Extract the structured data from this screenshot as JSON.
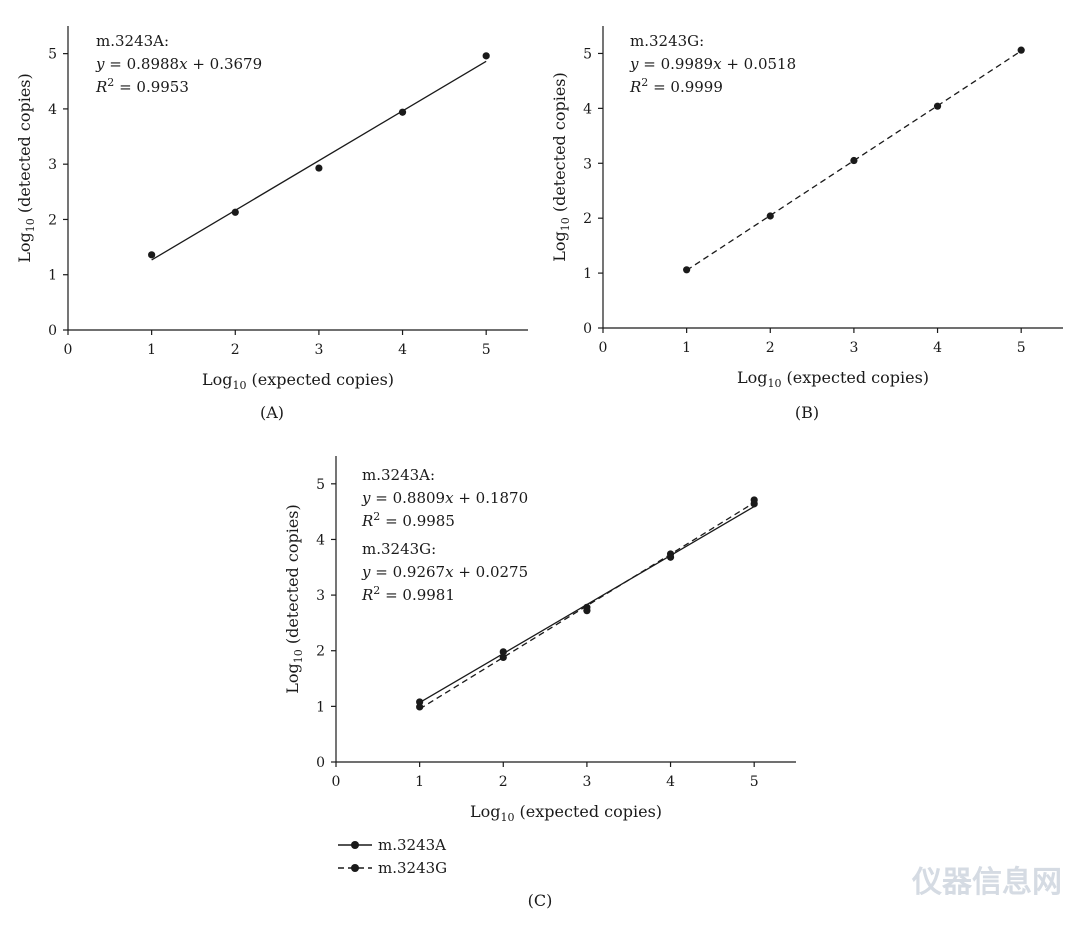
{
  "colors": {
    "ink": "#1a1a1a",
    "watermark": "#d5dbe3"
  },
  "legend": [
    {
      "name": "m.3243A",
      "style": "solid"
    },
    {
      "name": "m.3243G",
      "style": "dashed"
    }
  ],
  "watermark": {
    "text": "仪器信息网"
  },
  "chart_data": [
    {
      "panel": "(A)",
      "type": "scatter",
      "xlabel": "Log10 (expected copies)",
      "ylabel": "Log10 (detected copies)",
      "xlim": [
        0,
        5.5
      ],
      "ylim": [
        0,
        5.5
      ],
      "xticks": [
        0,
        1,
        2,
        3,
        4,
        5
      ],
      "yticks": [
        0,
        1,
        2,
        3,
        4,
        5
      ],
      "series": [
        {
          "name": "m.3243A",
          "line": "solid",
          "fit": {
            "slope": 0.8988,
            "intercept": 0.3679
          },
          "points": [
            [
              1,
              1.36
            ],
            [
              2,
              2.13
            ],
            [
              3,
              2.93
            ],
            [
              4,
              3.94
            ],
            [
              5,
              4.96
            ]
          ],
          "annotation": {
            "name": "m.3243A:",
            "equation": "y = 0.8988x + 0.3679",
            "r2": "R2 = 0.9953"
          }
        }
      ]
    },
    {
      "panel": "(B)",
      "type": "scatter",
      "xlabel": "Log10 (expected copies)",
      "ylabel": "Log10 (detected copies)",
      "xlim": [
        0,
        5.5
      ],
      "ylim": [
        0,
        5.5
      ],
      "xticks": [
        0,
        1,
        2,
        3,
        4,
        5
      ],
      "yticks": [
        0,
        1,
        2,
        3,
        4,
        5
      ],
      "series": [
        {
          "name": "m.3243G",
          "line": "dashed",
          "fit": {
            "slope": 0.9989,
            "intercept": 0.0518
          },
          "points": [
            [
              1,
              1.06
            ],
            [
              2,
              2.04
            ],
            [
              3,
              3.05
            ],
            [
              4,
              4.04
            ],
            [
              5,
              5.06
            ]
          ],
          "annotation": {
            "name": "m.3243G:",
            "equation": "y = 0.9989x + 0.0518",
            "r2": "R2 = 0.9999"
          }
        }
      ]
    },
    {
      "panel": "(C)",
      "type": "scatter",
      "xlabel": "Log10 (expected copies)",
      "ylabel": "Log10 (detected copies)",
      "xlim": [
        0,
        5.5
      ],
      "ylim": [
        0,
        5.5
      ],
      "xticks": [
        0,
        1,
        2,
        3,
        4,
        5
      ],
      "yticks": [
        0,
        1,
        2,
        3,
        4,
        5
      ],
      "series": [
        {
          "name": "m.3243A",
          "line": "solid",
          "fit": {
            "slope": 0.8809,
            "intercept": 0.187
          },
          "points": [
            [
              1,
              1.08
            ],
            [
              2,
              1.98
            ],
            [
              3,
              2.78
            ],
            [
              4,
              3.74
            ],
            [
              5,
              4.64
            ]
          ],
          "annotation": {
            "name": "m.3243A:",
            "equation": "y = 0.8809x + 0.1870",
            "r2": "R2 = 0.9985"
          }
        },
        {
          "name": "m.3243G",
          "line": "dashed",
          "fit": {
            "slope": 0.9267,
            "intercept": 0.0275
          },
          "points": [
            [
              1,
              0.99
            ],
            [
              2,
              1.88
            ],
            [
              3,
              2.72
            ],
            [
              4,
              3.68
            ],
            [
              5,
              4.71
            ]
          ],
          "annotation": {
            "name": "m.3243G:",
            "equation": "y = 0.9267x + 0.0275",
            "r2": "R2 = 0.9981"
          }
        }
      ]
    }
  ]
}
